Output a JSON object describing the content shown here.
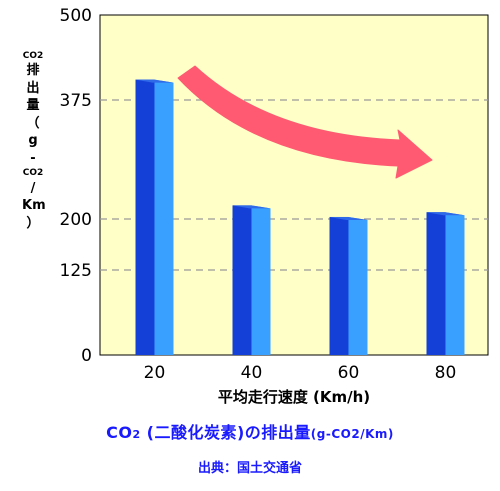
{
  "chart_data": {
    "type": "bar",
    "categories": [
      "20",
      "40",
      "60",
      "80"
    ],
    "values": [
      405,
      220,
      203,
      210
    ],
    "ylim": [
      0,
      500
    ],
    "yticks": [
      0,
      125,
      200,
      375,
      500
    ],
    "xlabel": "平均走行速度 (Km/h)",
    "ylabel": "CO2 排出量 (g-CO2/Km)",
    "ylabel_chars": [
      "CO2",
      "排",
      "出",
      "量",
      "（",
      "g",
      "-",
      "CO2",
      "/",
      "Km",
      "）"
    ],
    "grid": true,
    "annotation": "arrow-decreasing",
    "colors": {
      "plot_background": "#ffffc8",
      "bar_front": "#1540d8",
      "bar_side": "#3aa0ff",
      "arrow": "#ff5a72",
      "grid": "#999999"
    }
  },
  "caption": {
    "main_prefix": "CO",
    "main_sub": "2",
    "main_rest": " (二酸化炭素)の排出量",
    "unit": "(g-CO2/Km)",
    "source": "出典：国土交通省"
  }
}
